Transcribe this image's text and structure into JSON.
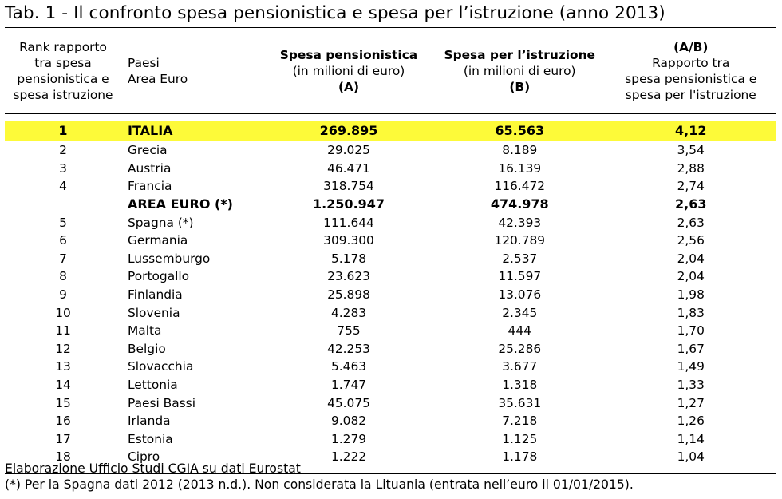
{
  "title": "Tab. 1 - Il confronto spesa pensionistica e spesa per l’istruzione (anno 2013)",
  "headers": {
    "rank": [
      "Rank rapporto",
      "tra spesa",
      "pensionistica e",
      "spesa istruzione"
    ],
    "country": [
      "Paesi",
      "Area Euro"
    ],
    "pens": {
      "title": "Spesa pensionistica",
      "unit": "(in milioni di euro)",
      "tag": "(A)"
    },
    "istr": {
      "title": "Spesa per l’istruzione",
      "unit": "(in milioni di euro)",
      "tag": "(B)"
    },
    "ratio": {
      "tag": "(A/B)",
      "lines": [
        "Rapporto tra",
        "spesa pensionistica e",
        "spesa per l'istruzione"
      ]
    }
  },
  "rows": [
    {
      "rank": "1",
      "country": "ITALIA",
      "pens": "269.895",
      "istr": "65.563",
      "ratio": "4,12"
    },
    {
      "rank": "2",
      "country": "Grecia",
      "pens": "29.025",
      "istr": "8.189",
      "ratio": "3,54"
    },
    {
      "rank": "3",
      "country": "Austria",
      "pens": "46.471",
      "istr": "16.139",
      "ratio": "2,88"
    },
    {
      "rank": "4",
      "country": "Francia",
      "pens": "318.754",
      "istr": "116.472",
      "ratio": "2,74"
    },
    {
      "rank": "",
      "country": "AREA EURO (*)",
      "pens": "1.250.947",
      "istr": "474.978",
      "ratio": "2,63"
    },
    {
      "rank": "5",
      "country": "Spagna (*)",
      "pens": "111.644",
      "istr": "42.393",
      "ratio": "2,63"
    },
    {
      "rank": "6",
      "country": "Germania",
      "pens": "309.300",
      "istr": "120.789",
      "ratio": "2,56"
    },
    {
      "rank": "7",
      "country": "Lussemburgo",
      "pens": "5.178",
      "istr": "2.537",
      "ratio": "2,04"
    },
    {
      "rank": "8",
      "country": "Portogallo",
      "pens": "23.623",
      "istr": "11.597",
      "ratio": "2,04"
    },
    {
      "rank": "9",
      "country": "Finlandia",
      "pens": "25.898",
      "istr": "13.076",
      "ratio": "1,98"
    },
    {
      "rank": "10",
      "country": "Slovenia",
      "pens": "4.283",
      "istr": "2.345",
      "ratio": "1,83"
    },
    {
      "rank": "11",
      "country": "Malta",
      "pens": "755",
      "istr": "444",
      "ratio": "1,70"
    },
    {
      "rank": "12",
      "country": "Belgio",
      "pens": "42.253",
      "istr": "25.286",
      "ratio": "1,67"
    },
    {
      "rank": "13",
      "country": "Slovacchia",
      "pens": "5.463",
      "istr": "3.677",
      "ratio": "1,49"
    },
    {
      "rank": "14",
      "country": "Lettonia",
      "pens": "1.747",
      "istr": "1.318",
      "ratio": "1,33"
    },
    {
      "rank": "15",
      "country": "Paesi Bassi",
      "pens": "45.075",
      "istr": "35.631",
      "ratio": "1,27"
    },
    {
      "rank": "16",
      "country": "Irlanda",
      "pens": "9.082",
      "istr": "7.218",
      "ratio": "1,26"
    },
    {
      "rank": "17",
      "country": "Estonia",
      "pens": "1.279",
      "istr": "1.125",
      "ratio": "1,14"
    },
    {
      "rank": "18",
      "country": "Cipro",
      "pens": "1.222",
      "istr": "1.178",
      "ratio": "1,04"
    }
  ],
  "footer": {
    "source": "Elaborazione Ufficio Studi CGIA su dati Eurostat",
    "note": "(*) Per la Spagna dati 2012 (2013 n.d.). Non considerata la Lituania (entrata nell’euro il 01/01/2015)."
  },
  "colors": {
    "highlight": "#fdfa39"
  }
}
